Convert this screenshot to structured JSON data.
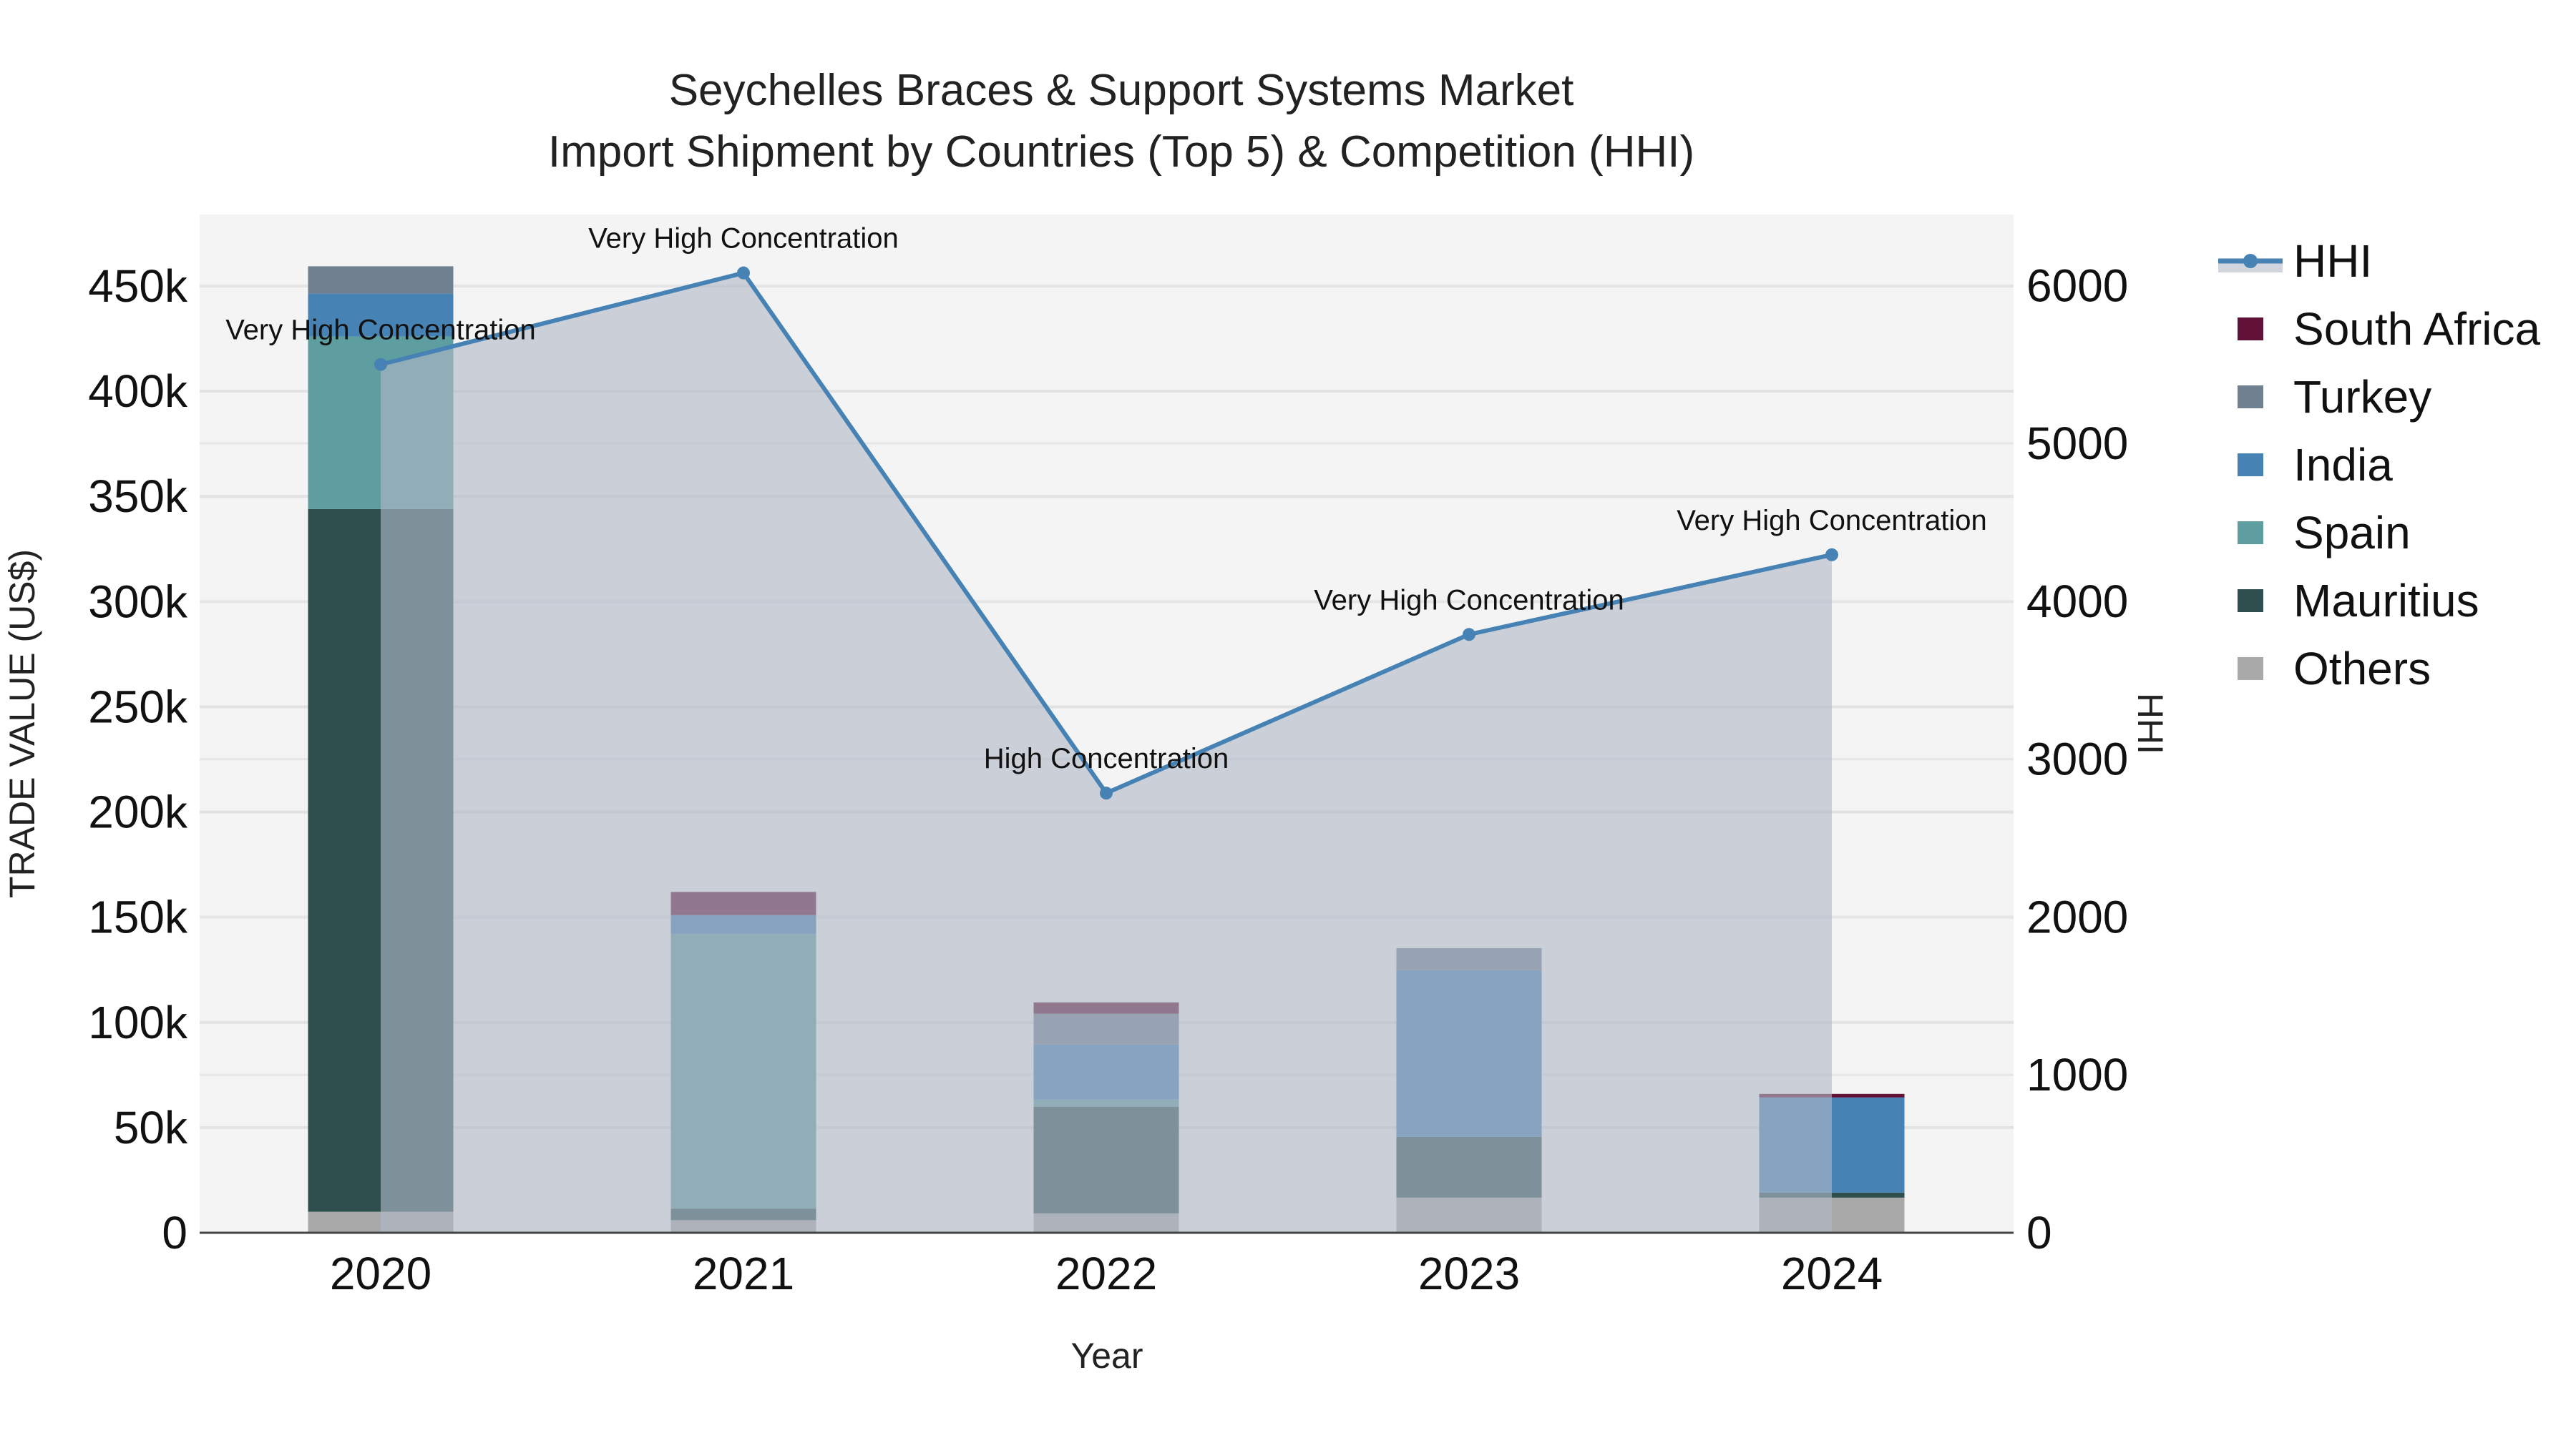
{
  "chart_data": {
    "type": "bar",
    "title": "Seychelles Braces & Support Systems Market",
    "subtitle": "Import Shipment by Countries (Top 5) & Competition (HHI)",
    "xlabel": "Year",
    "ylabel": "TRADE VALUE (US$)",
    "y2label": "HHI",
    "categories": [
      "2020",
      "2021",
      "2022",
      "2023",
      "2024"
    ],
    "ylim": [
      0,
      484000
    ],
    "y2lim": [
      0,
      6450
    ],
    "yticks": [
      0,
      50000,
      100000,
      150000,
      200000,
      250000,
      300000,
      350000,
      400000,
      450000
    ],
    "ytick_labels": [
      "0",
      "50k",
      "100k",
      "150k",
      "200k",
      "250k",
      "300k",
      "350k",
      "400k",
      "450k"
    ],
    "y2ticks": [
      0,
      1000,
      2000,
      3000,
      4000,
      5000,
      6000
    ],
    "y2tick_labels": [
      "0",
      "1000",
      "2000",
      "3000",
      "4000",
      "5000",
      "6000"
    ],
    "stacked": true,
    "series": [
      {
        "name": "Others",
        "color": "#a9a9a9",
        "values": [
          10000,
          6000,
          9200,
          16700,
          16700
        ]
      },
      {
        "name": "Mauritius",
        "color": "#2f4f4f",
        "values": [
          334000,
          5500,
          50700,
          28900,
          2400
        ]
      },
      {
        "name": "Spain",
        "color": "#5f9ea0",
        "values": [
          82000,
          130500,
          3400,
          0,
          0
        ]
      },
      {
        "name": "India",
        "color": "#4682b4",
        "values": [
          20400,
          9000,
          26200,
          79200,
          45200
        ]
      },
      {
        "name": "Turkey",
        "color": "#708090",
        "values": [
          13000,
          0,
          14600,
          10500,
          0
        ]
      },
      {
        "name": "South Africa",
        "color": "#621236",
        "values": [
          0,
          11000,
          5400,
          0,
          1700
        ]
      }
    ],
    "line_series": {
      "name": "HHI",
      "axis": "y2",
      "color": "#4682b4",
      "fill_color": "rgba(176,184,199,0.62)",
      "values": [
        5500,
        6080,
        2785,
        3790,
        4295
      ],
      "annotations": [
        "Very High Concentration",
        "Very High Concentration",
        "High Concentration",
        "Very High Concentration",
        "Very High Concentration"
      ]
    },
    "legend": {
      "position": "right",
      "entries": [
        "HHI",
        "South Africa",
        "Turkey",
        "India",
        "Spain",
        "Mauritius",
        "Others"
      ]
    },
    "grid": true,
    "plot_bgcolor": "#f4f4f4"
  }
}
